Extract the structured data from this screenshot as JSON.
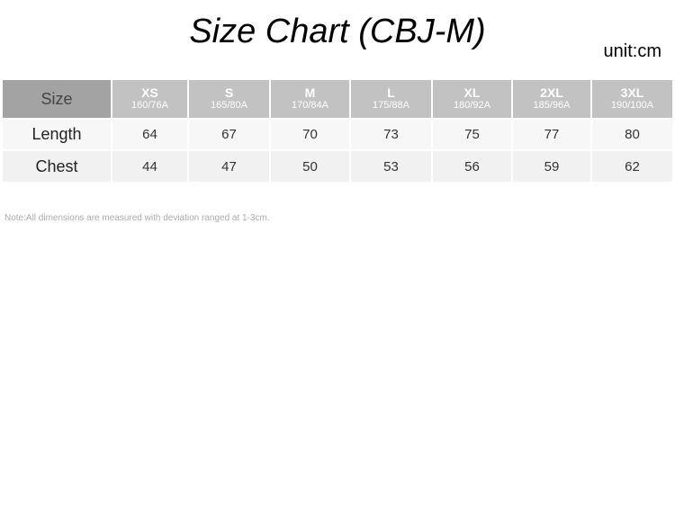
{
  "title": "Size Chart (CBJ-M)",
  "unit": "unit:cm",
  "table": {
    "corner": "Size",
    "sizes": [
      {
        "size": "XS",
        "height": "160/76A"
      },
      {
        "size": "S",
        "height": "165/80A"
      },
      {
        "size": "M",
        "height": "170/84A"
      },
      {
        "size": "L",
        "height": "175/88A"
      },
      {
        "size": "XL",
        "height": "180/92A"
      },
      {
        "size": "2XL",
        "height": "185/96A"
      },
      {
        "size": "3XL",
        "height": "190/100A"
      }
    ],
    "rows": [
      {
        "label": "Length",
        "values": [
          "64",
          "67",
          "70",
          "73",
          "75",
          "77",
          "80"
        ]
      },
      {
        "label": "Chest",
        "values": [
          "44",
          "47",
          "50",
          "53",
          "56",
          "59",
          "62"
        ]
      }
    ]
  },
  "note": "Note:All dimensions are measured with deviation ranged at 1-3cm."
}
